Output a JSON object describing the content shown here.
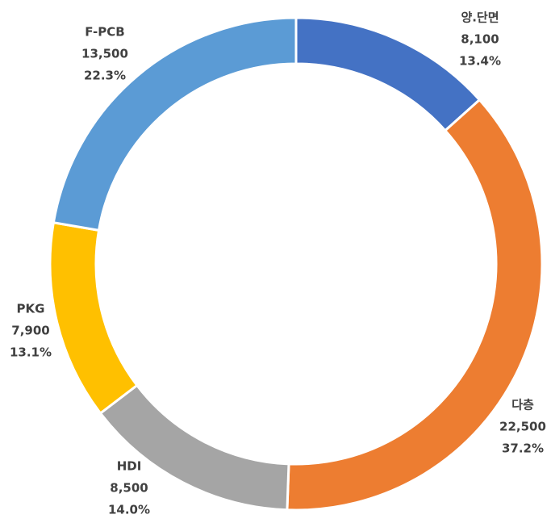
{
  "chart_data": {
    "type": "donut",
    "categories": [
      "양.단면",
      "다층",
      "HDI",
      "PKG",
      "F-PCB"
    ],
    "values": [
      8100,
      22500,
      8500,
      7900,
      13500
    ],
    "value_labels": [
      "8,100",
      "22,500",
      "8,500",
      "7,900",
      "13,500"
    ],
    "percents": [
      13.4,
      37.2,
      14.0,
      13.1,
      22.3
    ],
    "percent_labels": [
      "13.4%",
      "37.2%",
      "14.0%",
      "13.1%",
      "22.3%"
    ],
    "colors": [
      "#4472c4",
      "#ed7d31",
      "#a5a5a5",
      "#ffc000",
      "#5b9bd5"
    ]
  }
}
